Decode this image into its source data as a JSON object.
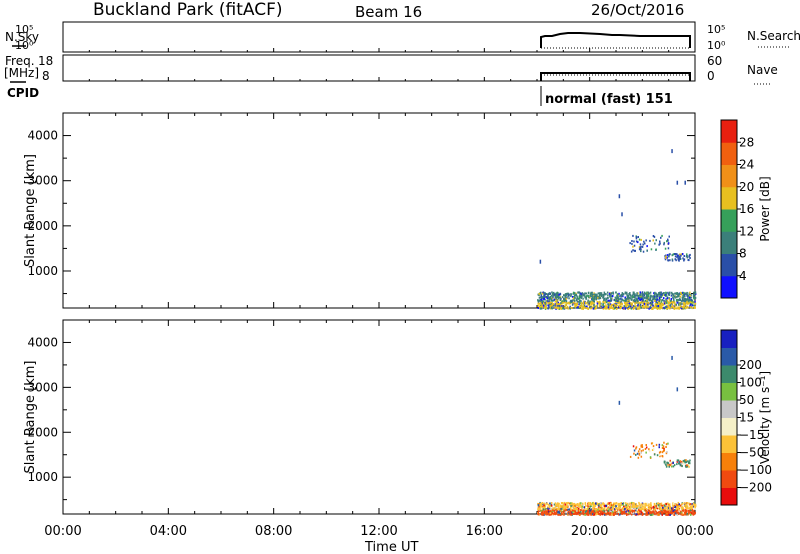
{
  "header": {
    "station": "Buckland Park (fitACF)",
    "beam": "Beam 16",
    "date": "26/Oct/2016"
  },
  "strips": {
    "nsky_label": "N.Sky",
    "nsearch_label": "N.Search",
    "freq_label_1": "Freq.",
    "freq_label_2": "[MHz]",
    "nave_label": "Nave",
    "cpid_label": "CPID",
    "cpid_text": "normal (fast) 151",
    "noise_ticks_left": [
      "10^5",
      "10^0"
    ],
    "noise_ticks_right": [
      "10^5",
      "10^0"
    ],
    "freq_ticks_left": [
      "18",
      "8"
    ],
    "freq_ticks_right": [
      "60",
      "0"
    ]
  },
  "colors": {
    "power_scale": [
      "#1010ff",
      "#2a4fa8",
      "#3b7f7a",
      "#36a05a",
      "#e8c020",
      "#f09018",
      "#f06010",
      "#e82010"
    ],
    "velocity_scale": [
      "#e80c0c",
      "#f04a10",
      "#f7800a",
      "#fcc238",
      "#f5f0c8",
      "#c8c8c8",
      "#78c040",
      "#3c8a6c",
      "#2a5aa8",
      "#1820c0"
    ]
  },
  "chart_data": [
    {
      "type": "heatmap",
      "panel": "power",
      "ylabel": "Slant Range [km]",
      "yticks": [
        "1000",
        "2000",
        "3000",
        "4000"
      ],
      "ylim": [
        180,
        4500
      ],
      "xlim": [
        0,
        24
      ],
      "colorbar_label": "Power [dB]",
      "colorbar_ticks": [
        "4",
        "8",
        "12",
        "16",
        "20",
        "24",
        "28"
      ],
      "colorbar_range": [
        0,
        32
      ],
      "data_start_ut": 18.0,
      "echo_regions": [
        {
          "x": [
            18.0,
            24.0
          ],
          "y": [
            180,
            350
          ],
          "level": "16",
          "description": "near-range ground scatter band"
        },
        {
          "x": [
            18.0,
            24.0
          ],
          "y": [
            350,
            550
          ],
          "level": "8"
        },
        {
          "x": [
            21.5,
            23.0
          ],
          "y": [
            1450,
            1800
          ],
          "level": "4"
        },
        {
          "x": [
            22.8,
            23.8
          ],
          "y": [
            1250,
            1400
          ],
          "level": "4"
        }
      ],
      "isolated_points": [
        {
          "x": 23.1,
          "y": 3700
        },
        {
          "x": 23.3,
          "y": 3000
        },
        {
          "x": 23.6,
          "y": 3000
        },
        {
          "x": 21.1,
          "y": 2700
        },
        {
          "x": 21.2,
          "y": 2300
        },
        {
          "x": 18.1,
          "y": 1250
        }
      ]
    },
    {
      "type": "heatmap",
      "panel": "velocity",
      "ylabel": "Slant Range [km]",
      "yticks": [
        "1000",
        "2000",
        "3000",
        "4000"
      ],
      "ylim": [
        180,
        4500
      ],
      "xlim": [
        0,
        24
      ],
      "colorbar_label": "Velocity [m s^-1]",
      "colorbar_ticks": [
        "-200",
        "-100",
        "-50",
        "-15",
        "15",
        "50",
        "100",
        "200"
      ],
      "colorbar_range": [
        -250,
        250
      ],
      "data_start_ut": 18.0,
      "echo_regions": [
        {
          "x": [
            18.0,
            24.0
          ],
          "y": [
            180,
            300
          ],
          "level": "-200",
          "description": "red near-range band"
        },
        {
          "x": [
            18.0,
            24.0
          ],
          "y": [
            300,
            450
          ],
          "level": "-50"
        },
        {
          "x": [
            21.5,
            23.0
          ],
          "y": [
            1450,
            1800
          ],
          "level": "-100"
        },
        {
          "x": [
            22.8,
            23.8
          ],
          "y": [
            1250,
            1400
          ],
          "level": "100"
        }
      ],
      "isolated_points": [
        {
          "x": 23.1,
          "y": 3700
        },
        {
          "x": 23.3,
          "y": 3000
        },
        {
          "x": 21.1,
          "y": 2700
        }
      ]
    }
  ],
  "time_axis": {
    "ticks": [
      "00:00",
      "04:00",
      "08:00",
      "12:00",
      "16:00",
      "20:00",
      "00:00"
    ],
    "tick_hours": [
      0,
      4,
      8,
      12,
      16,
      20,
      24
    ],
    "label": "Time UT"
  }
}
